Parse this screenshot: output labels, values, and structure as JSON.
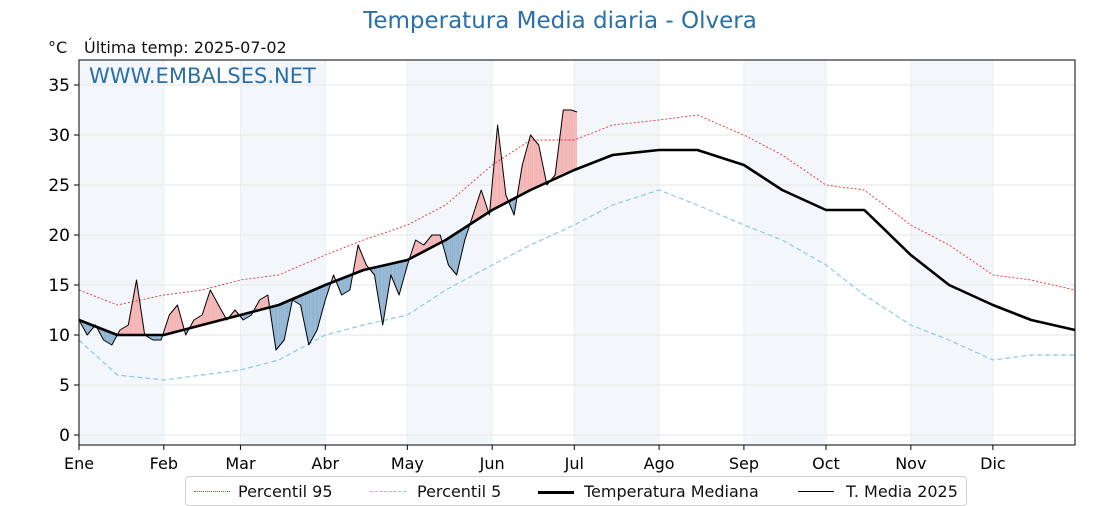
{
  "chart_data": {
    "type": "line",
    "title": "Temperatura Media diaria - Olvera",
    "ylabel": "°C",
    "subtitle": "Última temp: 2025-07-02",
    "watermark": "WWW.EMBALSES.NET",
    "ylim": [
      -1,
      37.5
    ],
    "yticks": [
      0,
      5,
      10,
      15,
      20,
      25,
      30,
      35
    ],
    "months": [
      "Ene",
      "Feb",
      "Mar",
      "Abr",
      "May",
      "Jun",
      "Jul",
      "Ago",
      "Sep",
      "Oct",
      "Nov",
      "Dic"
    ],
    "grid": true,
    "legend_position": "bottom",
    "series": [
      {
        "name": "Percentil 95",
        "color": "#e0302e",
        "style": "dotted",
        "x": [
          1,
          15,
          32,
          46,
          60,
          74,
          91,
          105,
          121,
          135,
          152,
          166,
          182,
          196,
          213,
          227,
          244,
          258,
          274,
          288,
          305,
          319,
          335,
          349,
          365
        ],
        "y": [
          14.5,
          13,
          14,
          14.5,
          15.5,
          16,
          18,
          19.5,
          21,
          23,
          27,
          29.5,
          29.5,
          31,
          31.5,
          32,
          30,
          28,
          25,
          24.5,
          21,
          19,
          16,
          15.5,
          14.5
        ]
      },
      {
        "name": "Percentil 5",
        "color": "#8ecae0",
        "style": "dashed",
        "x": [
          1,
          15,
          32,
          46,
          60,
          74,
          91,
          105,
          121,
          135,
          152,
          166,
          182,
          196,
          213,
          227,
          244,
          258,
          274,
          288,
          305,
          319,
          335,
          349,
          365
        ],
        "y": [
          9.5,
          6,
          5.5,
          6,
          6.5,
          7.5,
          10,
          11,
          12,
          14.5,
          17,
          19,
          21,
          23,
          24.5,
          23,
          21,
          19.5,
          17,
          14,
          11,
          9.5,
          7.5,
          8,
          8
        ]
      },
      {
        "name": "Temperatura Mediana",
        "color": "#000000",
        "style": "thick",
        "x": [
          1,
          15,
          32,
          46,
          60,
          74,
          91,
          105,
          121,
          135,
          152,
          166,
          182,
          196,
          213,
          227,
          244,
          258,
          274,
          288,
          305,
          319,
          335,
          349,
          365
        ],
        "y": [
          11.5,
          10,
          10,
          11,
          12,
          13,
          15,
          16.5,
          17.5,
          19.5,
          22.5,
          24.5,
          26.5,
          28,
          28.5,
          28.5,
          27,
          24.5,
          22.5,
          22.5,
          18,
          15,
          13,
          11.5,
          10.5
        ]
      },
      {
        "name": "T. Media 2025",
        "color": "#000000",
        "style": "thin",
        "x": [
          1,
          4,
          7,
          10,
          13,
          16,
          19,
          22,
          25,
          28,
          31,
          34,
          37,
          40,
          43,
          46,
          49,
          52,
          55,
          58,
          61,
          64,
          67,
          70,
          73,
          76,
          79,
          82,
          85,
          88,
          91,
          94,
          97,
          100,
          103,
          106,
          109,
          112,
          115,
          118,
          121,
          124,
          127,
          130,
          133,
          136,
          139,
          142,
          145,
          148,
          151,
          154,
          157,
          160,
          163,
          166,
          169,
          172,
          175,
          178,
          181,
          183
        ],
        "y": [
          11.5,
          10,
          11,
          9.5,
          9,
          10.5,
          11,
          15.5,
          10,
          9.5,
          9.5,
          12,
          13,
          10,
          11.5,
          12,
          14.5,
          13,
          11.5,
          12.5,
          11.5,
          12,
          13.5,
          14,
          8.5,
          9.5,
          13.5,
          13,
          9,
          10.5,
          13.5,
          16,
          14,
          14.5,
          19,
          17,
          16,
          11,
          16,
          14,
          17,
          19.5,
          19,
          20,
          20,
          17,
          16,
          19.5,
          22,
          24.5,
          22,
          31,
          24,
          22,
          27,
          30,
          29,
          25,
          26,
          32.5,
          32.5,
          32.3
        ]
      }
    ],
    "band_colors": {
      "above": "#f4b3b3",
      "below": "#8fb3d1"
    }
  },
  "legend": {
    "p95": "Percentil 95",
    "p5": "Percentil 5",
    "median": "Temperatura Mediana",
    "current": "T. Media 2025"
  }
}
